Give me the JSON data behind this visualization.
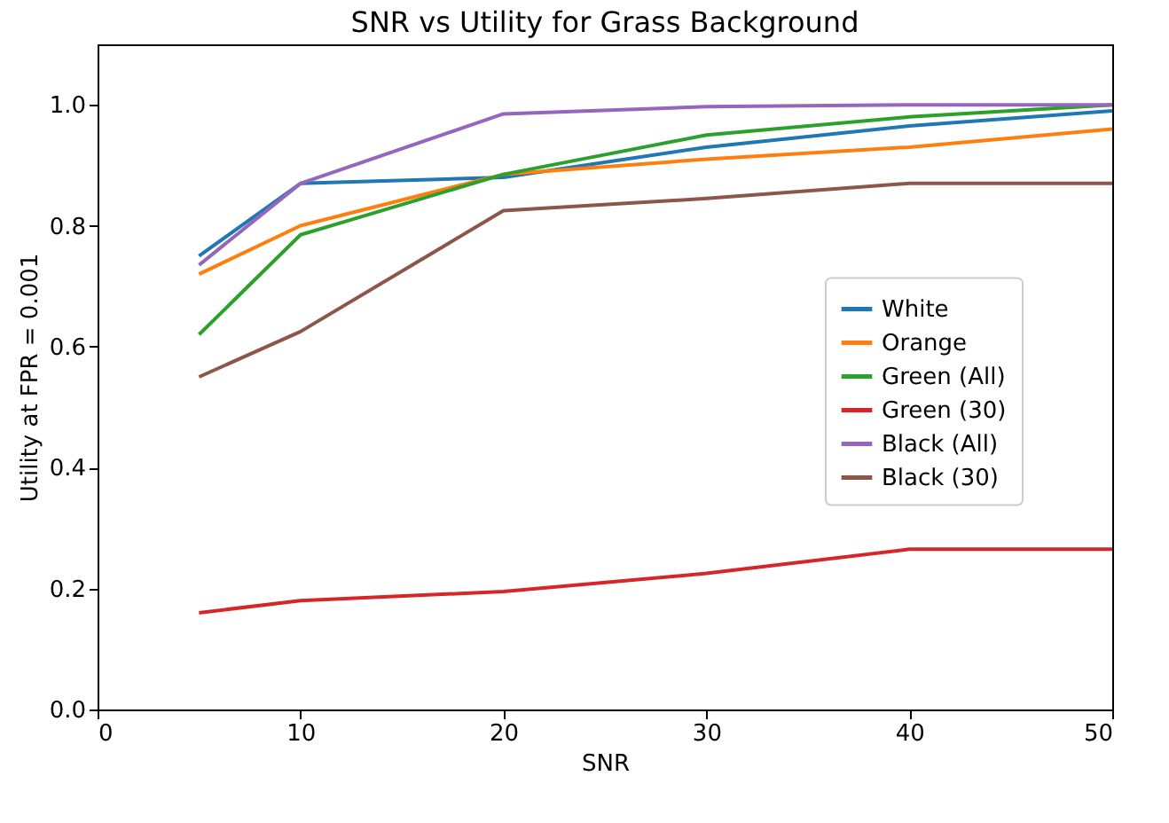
{
  "chart_data": {
    "type": "line",
    "title": "SNR vs Utility for Grass Background",
    "xlabel": "SNR",
    "ylabel": "Utility at FPR = 0.001",
    "x": [
      5,
      10,
      20,
      30,
      40,
      50
    ],
    "series": [
      {
        "name": "White",
        "color": "#1f77b4",
        "values": [
          0.75,
          0.87,
          0.88,
          0.93,
          0.965,
          0.99
        ]
      },
      {
        "name": "Orange",
        "color": "#ff7f0e",
        "values": [
          0.72,
          0.8,
          0.885,
          0.91,
          0.93,
          0.96
        ]
      },
      {
        "name": "Green (All)",
        "color": "#2ca02c",
        "values": [
          0.62,
          0.785,
          0.885,
          0.95,
          0.98,
          1.0
        ]
      },
      {
        "name": "Green (30)",
        "color": "#d62728",
        "values": [
          0.16,
          0.18,
          0.195,
          0.225,
          0.265,
          0.265
        ]
      },
      {
        "name": "Black (All)",
        "color": "#9467bd",
        "values": [
          0.735,
          0.87,
          0.985,
          0.997,
          1.0,
          1.0
        ]
      },
      {
        "name": "Black (30)",
        "color": "#8c564b",
        "values": [
          0.55,
          0.625,
          0.825,
          0.845,
          0.87,
          0.87
        ]
      }
    ],
    "xlim": [
      0,
      50
    ],
    "xticks": [
      0,
      10,
      20,
      30,
      40,
      50
    ],
    "ylim": [
      0,
      1.1
    ],
    "yticks": [
      {
        "value": 0,
        "label": "0.0"
      },
      {
        "value": 0.2,
        "label": "0.2"
      },
      {
        "value": 0.4,
        "label": "0.4"
      },
      {
        "value": 0.6,
        "label": "0.6"
      },
      {
        "value": 0.8,
        "label": "0.8"
      },
      {
        "value": 1.0,
        "label": "1.0"
      }
    ],
    "legend": "right",
    "grid": false
  }
}
